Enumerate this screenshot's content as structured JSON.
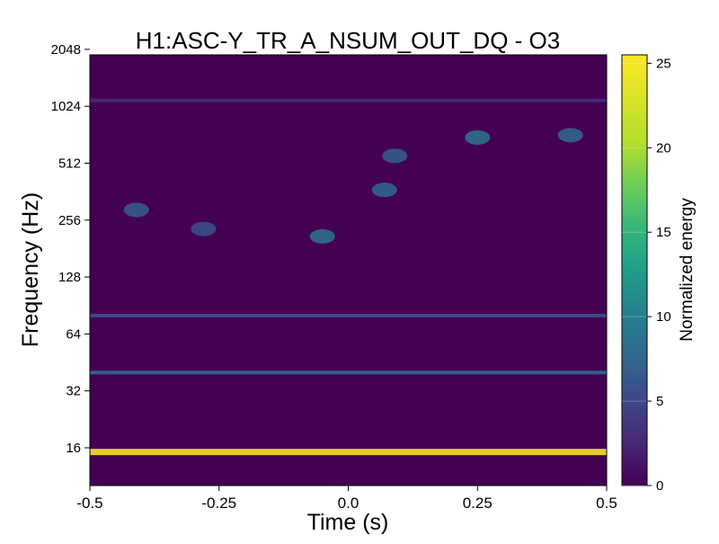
{
  "chart_data": {
    "type": "heatmap",
    "title": "H1:ASC-Y_TR_A_NSUM_OUT_DQ - O3",
    "xlabel": "Time (s)",
    "ylabel": "Frequency (Hz)",
    "xlim": [
      -0.5,
      0.5
    ],
    "ylim": [
      10,
      2048
    ],
    "yscale": "log2",
    "x_ticks": [
      -0.5,
      -0.25,
      0.0,
      0.25,
      0.5
    ],
    "x_tick_labels": [
      "-0.5",
      "-0.25",
      "0.0",
      "0.25",
      "0.5"
    ],
    "y_ticks": [
      16,
      32,
      64,
      128,
      256,
      512,
      1024,
      2048
    ],
    "y_tick_labels": [
      "16",
      "32",
      "64",
      "128",
      "256",
      "512",
      "1024",
      "2048"
    ],
    "colorbar": {
      "label": "Normalized energy",
      "range": [
        0,
        25.5
      ],
      "ticks": [
        0,
        5,
        10,
        15,
        20,
        25
      ],
      "tick_labels": [
        "0",
        "5",
        "10",
        "15",
        "20",
        "25"
      ],
      "colormap": "viridis"
    },
    "features": [
      {
        "kind": "line",
        "freq": 15.2,
        "t_start": -0.5,
        "t_end": 0.5,
        "energy": 25
      },
      {
        "kind": "line",
        "freq": 40,
        "t_start": -0.5,
        "t_end": 0.5,
        "energy": 8
      },
      {
        "kind": "line",
        "freq": 80,
        "t_start": -0.5,
        "t_end": 0.5,
        "energy": 6
      },
      {
        "kind": "line",
        "freq": 1100,
        "t_start": -0.5,
        "t_end": 0.5,
        "energy": 3
      },
      {
        "kind": "blob",
        "freq": 210,
        "t": -0.05,
        "energy": 9
      },
      {
        "kind": "blob",
        "freq": 370,
        "t": 0.07,
        "energy": 8
      },
      {
        "kind": "blob",
        "freq": 290,
        "t": -0.41,
        "energy": 7
      },
      {
        "kind": "blob",
        "freq": 230,
        "t": -0.28,
        "energy": 6
      },
      {
        "kind": "blob",
        "freq": 700,
        "t": 0.25,
        "energy": 9
      },
      {
        "kind": "blob",
        "freq": 560,
        "t": 0.09,
        "energy": 7
      },
      {
        "kind": "blob",
        "freq": 720,
        "t": 0.43,
        "energy": 8
      }
    ]
  }
}
